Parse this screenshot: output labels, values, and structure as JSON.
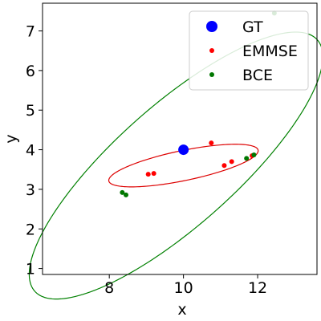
{
  "chart_data": {
    "type": "scatter",
    "title": "",
    "xlabel": "x",
    "ylabel": "y",
    "xlim": [
      6.2,
      13.6
    ],
    "ylim": [
      0.85,
      7.7
    ],
    "xticks": [
      8,
      10,
      12
    ],
    "yticks": [
      1,
      2,
      3,
      4,
      5,
      6,
      7
    ],
    "grid": false,
    "legend_position": "top-right",
    "series": [
      {
        "name": "GT",
        "color": "#0000ff",
        "marker": "large-dot",
        "points": [
          [
            10.0,
            4.0
          ]
        ]
      },
      {
        "name": "EMMSE",
        "color": "#ff0000",
        "marker": "small-dot",
        "points": [
          [
            10.75,
            4.17
          ],
          [
            11.85,
            3.85
          ],
          [
            11.3,
            3.7
          ],
          [
            11.1,
            3.6
          ],
          [
            9.2,
            3.4
          ],
          [
            9.05,
            3.38
          ]
        ],
        "ellipse": {
          "center": [
            10.0,
            3.6
          ],
          "semi_major": 2.05,
          "semi_minor": 0.38,
          "angle_deg": 10.9,
          "color": "#dd0000"
        }
      },
      {
        "name": "BCE",
        "color": "#007700",
        "marker": "small-dot",
        "points": [
          [
            12.45,
            7.45
          ],
          [
            11.9,
            3.87
          ],
          [
            11.7,
            3.78
          ],
          [
            8.35,
            2.92
          ],
          [
            8.45,
            2.86
          ]
        ],
        "ellipse": {
          "center": [
            9.8,
            3.6
          ],
          "semi_major": 4.96,
          "semi_minor": 1.56,
          "angle_deg": 39.4,
          "color": "#008000"
        }
      }
    ]
  }
}
